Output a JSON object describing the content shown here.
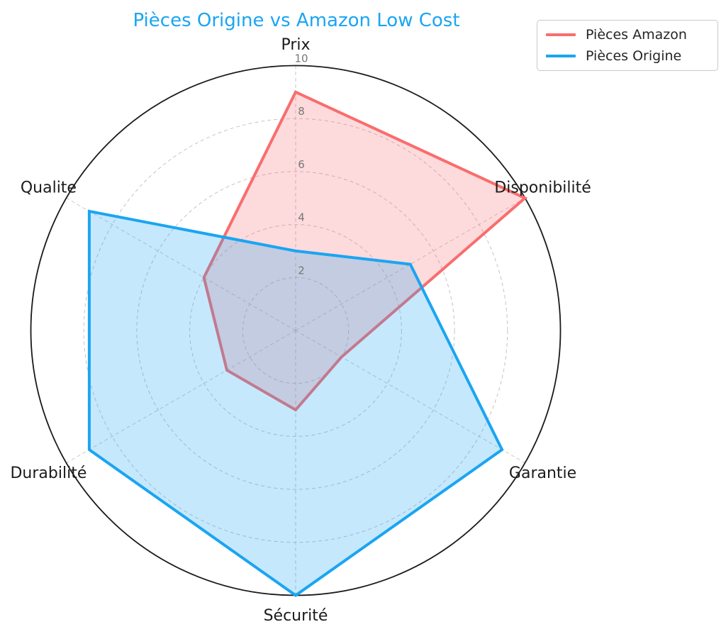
{
  "title": {
    "text": "Pièces Origine vs Amazon Low Cost",
    "color": "#1aa5f2"
  },
  "legend": {
    "position": "upper right",
    "items": [
      {
        "label": "Pièces Amazon",
        "color": "#f96d6e"
      },
      {
        "label": "Pièces Origine",
        "color": "#1aa5f2"
      }
    ]
  },
  "chart_data": {
    "type": "radar",
    "categories": [
      "Prix",
      "Disponibilité",
      "Garantie",
      "Sécurité",
      "Durabilité",
      "Qualite"
    ],
    "series": [
      {
        "name": "Pièces Amazon",
        "color": "#f96d6e",
        "values": [
          9,
          10,
          2,
          3,
          3,
          4
        ]
      },
      {
        "name": "Pièces Origine",
        "color": "#1aa5f2",
        "values": [
          3,
          5,
          9,
          10,
          9,
          9
        ]
      }
    ],
    "radial_ticks": [
      2,
      4,
      6,
      8,
      10
    ],
    "r_max": 10,
    "fill_alpha": 0.25,
    "grid": "dashed",
    "grid_color": "#c4c4c4",
    "outline_color": "#1a1a1a",
    "tick_label_color": "#777777",
    "category_label_color": "#1b1b1b",
    "legend_position": "upper right"
  }
}
